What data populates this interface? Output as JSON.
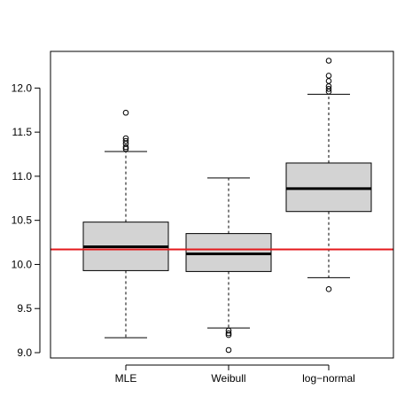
{
  "chart_data": {
    "type": "box",
    "title": "",
    "xlabel": "",
    "ylabel": "",
    "ylim": [
      8.9,
      12.45
    ],
    "yticks": [
      9.0,
      9.5,
      10.0,
      10.5,
      11.0,
      11.5,
      12.0
    ],
    "ytick_labels": [
      "9.0",
      "9.5",
      "10.0",
      "10.5",
      "11.0",
      "11.5",
      "12.0"
    ],
    "grid": false,
    "box_fill": "#d3d3d3",
    "box_stroke": "#000000",
    "reference_line": {
      "y": 10.17,
      "color": "#e41a1c"
    },
    "series": [
      {
        "label": "MLE",
        "whisker_low": 9.17,
        "q1": 9.93,
        "median": 10.2,
        "q3": 10.48,
        "whisker_high": 11.28,
        "outliers": [
          11.72,
          11.43,
          11.4,
          11.37,
          11.33,
          11.31
        ]
      },
      {
        "label": "Weibull",
        "whisker_low": 9.28,
        "q1": 9.92,
        "median": 10.12,
        "q3": 10.35,
        "whisker_high": 10.98,
        "outliers": [
          9.25,
          9.22,
          9.2,
          9.03
        ]
      },
      {
        "label": "log−normal",
        "whisker_low": 9.85,
        "q1": 10.6,
        "median": 10.86,
        "q3": 11.15,
        "whisker_high": 11.93,
        "outliers": [
          12.31,
          12.14,
          12.08,
          12.02,
          11.99,
          11.96,
          9.72
        ]
      }
    ]
  }
}
